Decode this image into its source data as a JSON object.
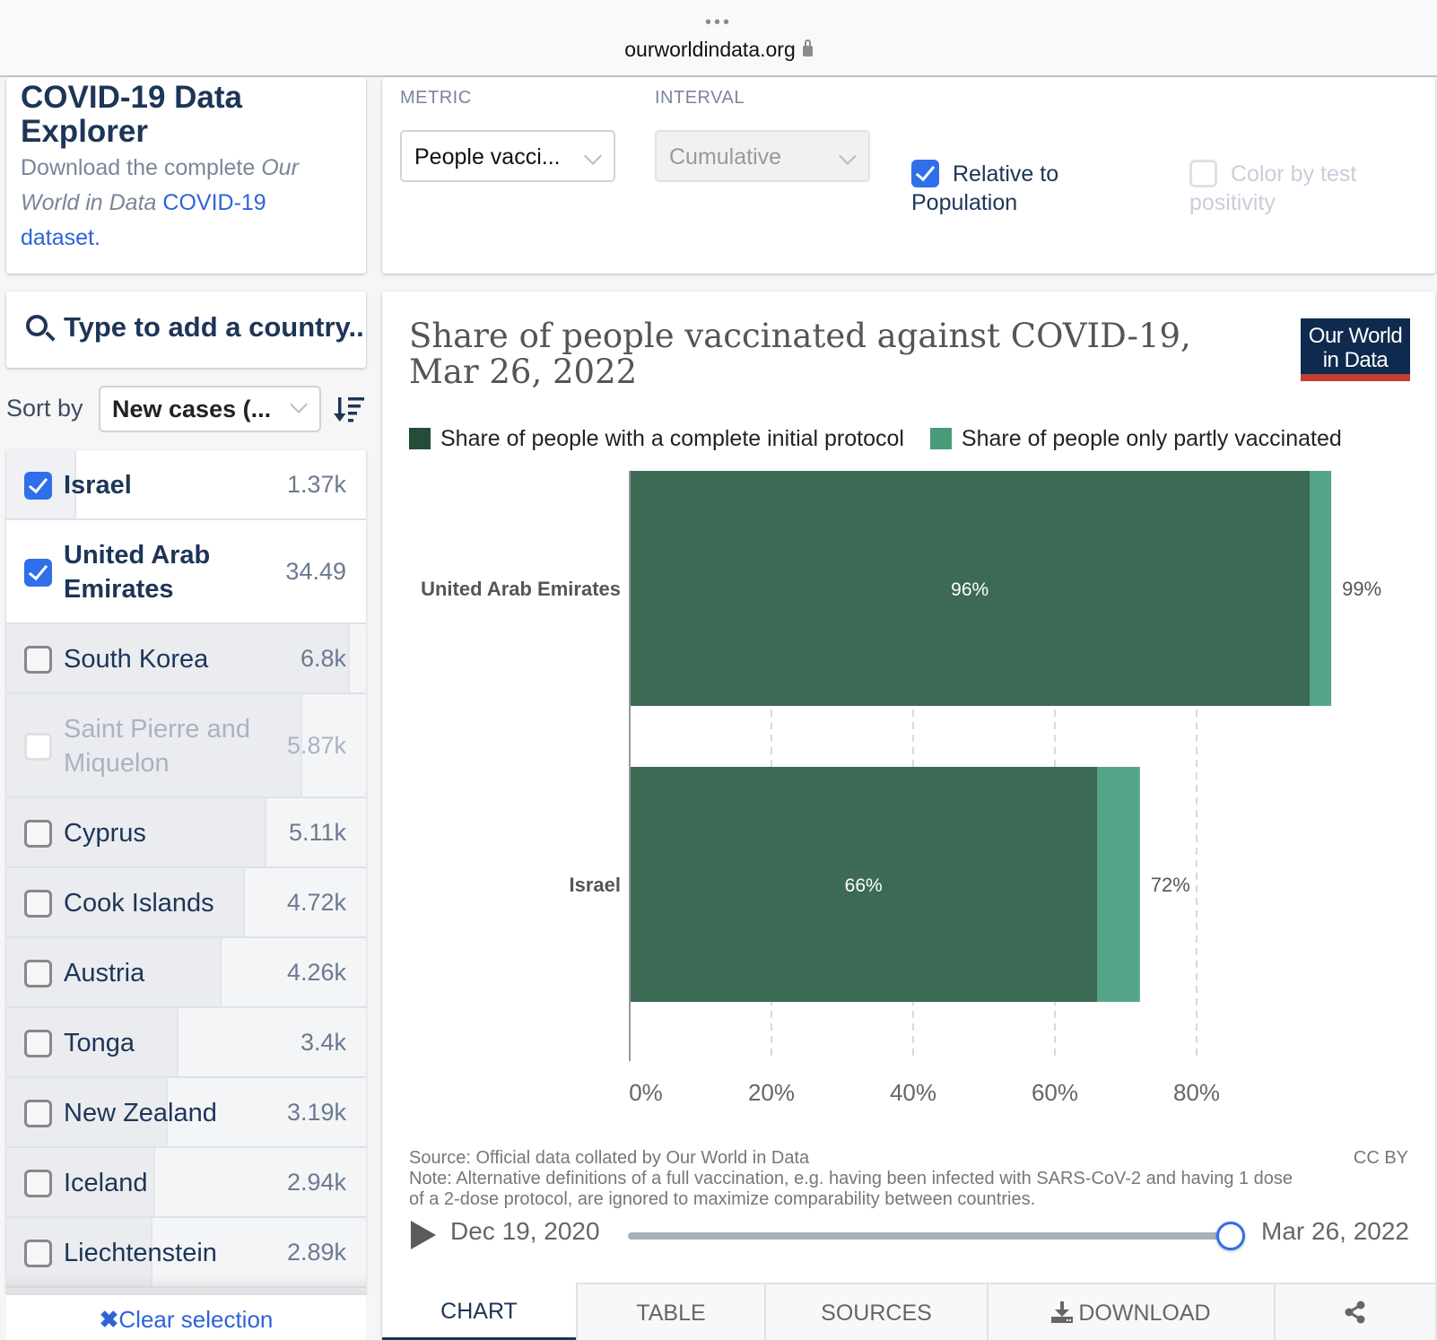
{
  "browser": {
    "url": "ourworldindata.org",
    "dots": "•••"
  },
  "intro": {
    "title": "COVID-19 Data Explorer",
    "desc_prefix": "Download the complete ",
    "desc_italic": "Our World in Data",
    "desc_link": "COVID-19 dataset."
  },
  "controls": {
    "metric_label": "METRIC",
    "metric_value": "People vacci...",
    "interval_label": "INTERVAL",
    "interval_value": "Cumulative",
    "relative_label_1": "Relative to",
    "relative_label_2": "Population",
    "relative_checked": true,
    "color_label_1": "Color by test",
    "color_label_2": "positivity",
    "color_checked": false
  },
  "search": {
    "placeholder": "Type to add a country.."
  },
  "sort": {
    "label": "Sort by",
    "value": "New cases (..."
  },
  "countries": [
    {
      "name": "Israel",
      "value": "1.37k",
      "checked": true,
      "muted": false
    },
    {
      "name": "United Arab Emirates",
      "name_l1": "United Arab",
      "name_l2": "Emirates",
      "value": "34.49",
      "checked": true,
      "muted": false
    },
    {
      "name": "South Korea",
      "value": "6.8k",
      "checked": false,
      "muted": false
    },
    {
      "name": "Saint Pierre and Miquelon",
      "name_l1": "Saint Pierre and",
      "name_l2": "Miquelon",
      "value": "5.87k",
      "checked": false,
      "muted": true
    },
    {
      "name": "Cyprus",
      "value": "5.11k",
      "checked": false,
      "muted": false
    },
    {
      "name": "Cook Islands",
      "value": "4.72k",
      "checked": false,
      "muted": false
    },
    {
      "name": "Austria",
      "value": "4.26k",
      "checked": false,
      "muted": false
    },
    {
      "name": "Tonga",
      "value": "3.4k",
      "checked": false,
      "muted": false
    },
    {
      "name": "New Zealand",
      "value": "3.19k",
      "checked": false,
      "muted": false
    },
    {
      "name": "Iceland",
      "value": "2.94k",
      "checked": false,
      "muted": false
    },
    {
      "name": "Liechtenstein",
      "value": "2.89k",
      "checked": false,
      "muted": false
    }
  ],
  "clear_selection": "Clear selection",
  "chart": {
    "title": "Share of people vaccinated against COVID-19, Mar 26, 2022",
    "logo_line1": "Our World",
    "logo_line2": "in Data",
    "source": "Source: Official data collated by Our World in Data",
    "note": "Note: Alternative definitions of a full vaccination, e.g. having been infected with SARS-CoV-2 and having 1 dose of a 2-dose protocol, are ignored to maximize comparability between countries.",
    "license": "CC BY",
    "timeline_start": "Dec 19, 2020",
    "timeline_end": "Mar 26, 2022",
    "timeline_position": 1.0
  },
  "chart_data": {
    "type": "bar",
    "orientation": "horizontal",
    "stacked": true,
    "title": "Share of people vaccinated against COVID-19, Mar 26, 2022",
    "categories": [
      "United Arab Emirates",
      "Israel"
    ],
    "series": [
      {
        "name": "Share of people with a complete initial protocol",
        "values": [
          96,
          66
        ],
        "color": "#3c6a55",
        "labels": [
          "96%",
          "66%"
        ]
      },
      {
        "name": "Share of people only partly vaccinated",
        "values": [
          3,
          6
        ],
        "color": "#55a688"
      }
    ],
    "totals": [
      99,
      72
    ],
    "total_labels": [
      "99%",
      "72%"
    ],
    "xlim": [
      0,
      100
    ],
    "xticks": [
      0,
      20,
      40,
      60,
      80
    ],
    "xtick_labels": [
      "0%",
      "20%",
      "40%",
      "60%",
      "80%"
    ],
    "grid": true,
    "legend_position": "top",
    "xlabel": "",
    "ylabel": ""
  },
  "tabs": [
    {
      "label": "CHART",
      "active": true
    },
    {
      "label": "TABLE",
      "active": false
    },
    {
      "label": "SOURCES",
      "active": false
    },
    {
      "label": "DOWNLOAD",
      "active": false,
      "icon": "download-icon"
    },
    {
      "label": "",
      "active": false,
      "icon": "share-icon"
    }
  ],
  "colors": {
    "accent": "#2f6fea",
    "navy": "#1d3557",
    "complete": "#3c6a55",
    "partial": "#55a688",
    "logo_bg": "#0e2a4e",
    "logo_red": "#c2402f"
  }
}
